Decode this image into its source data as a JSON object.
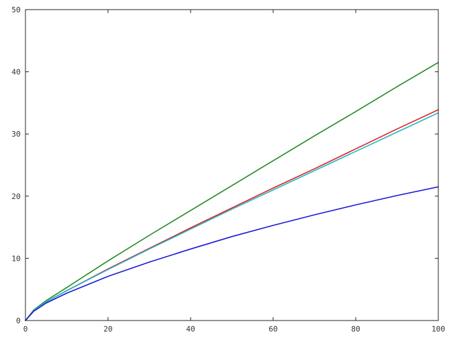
{
  "chart_data": {
    "type": "line",
    "title": "",
    "xlabel": "",
    "ylabel": "",
    "xlim": [
      0,
      100
    ],
    "ylim": [
      0,
      50
    ],
    "grid": false,
    "legend": "none",
    "x_ticks": [
      0,
      20,
      40,
      60,
      80,
      100
    ],
    "y_ticks": [
      0,
      10,
      20,
      30,
      40,
      50
    ],
    "x_tick_labels": [
      "0",
      "20",
      "40",
      "60",
      "80",
      "100"
    ],
    "y_tick_labels": [
      "0",
      "10",
      "20",
      "30",
      "40",
      "50"
    ],
    "x": [
      0,
      2,
      5,
      10,
      20,
      30,
      40,
      50,
      60,
      70,
      80,
      90,
      100
    ],
    "series": [
      {
        "color": "#228b22",
        "values": [
          0,
          1.7,
          3.2,
          5.3,
          9.6,
          13.7,
          17.7,
          21.7,
          25.7,
          29.7,
          33.6,
          37.6,
          41.5
        ]
      },
      {
        "color": "#e02020",
        "values": [
          0,
          1.6,
          3.0,
          4.8,
          8.3,
          11.6,
          14.9,
          18.1,
          21.3,
          24.4,
          27.6,
          30.8,
          33.9
        ]
      },
      {
        "color": "#20b8c8",
        "values": [
          0,
          1.6,
          3.0,
          4.8,
          8.2,
          11.5,
          14.7,
          17.9,
          21.0,
          24.1,
          27.2,
          30.3,
          33.4
        ]
      },
      {
        "color": "#1a1ad8",
        "values": [
          0,
          1.5,
          2.8,
          4.4,
          7.1,
          9.4,
          11.5,
          13.5,
          15.3,
          17.0,
          18.6,
          20.1,
          21.5
        ]
      }
    ]
  }
}
